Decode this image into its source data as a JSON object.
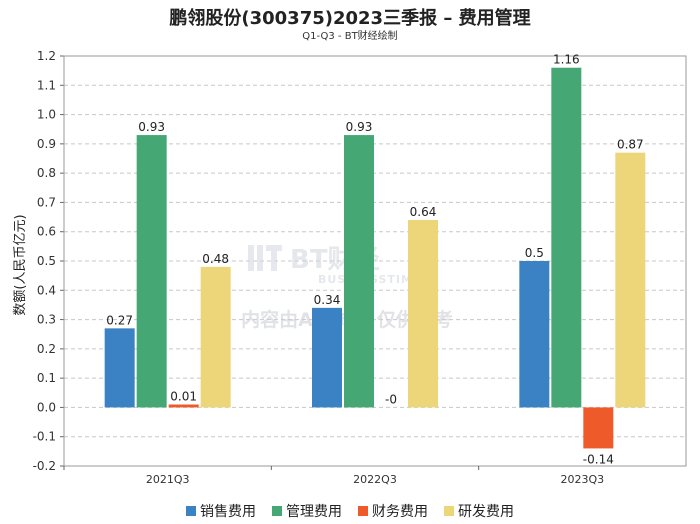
{
  "chart_data": {
    "type": "bar",
    "title": "鹏翎股份(300375)2023三季报 – 费用管理",
    "subtitle": "Q1-Q3 - BT财经绘制",
    "ylabel": "数额(人民币亿元)",
    "xlabel": "",
    "categories": [
      "2021Q3",
      "2022Q3",
      "2023Q3"
    ],
    "ylim": [
      -0.2,
      1.2
    ],
    "yticks": [
      "-0.2",
      "-0.1",
      "0.0",
      "0.1",
      "0.2",
      "0.3",
      "0.4",
      "0.5",
      "0.6",
      "0.7",
      "0.8",
      "0.9",
      "1.0",
      "1.1",
      "1.2"
    ],
    "grid": true,
    "legend_position": "bottom",
    "series": [
      {
        "name": "销售费用",
        "color": "#3a82c4",
        "values": [
          0.27,
          0.34,
          0.5
        ],
        "labels": [
          "0.27",
          "0.34",
          "0.5"
        ]
      },
      {
        "name": "管理费用",
        "color": "#45a874",
        "values": [
          0.93,
          0.93,
          1.16
        ],
        "labels": [
          "0.93",
          "0.93",
          "1.16"
        ]
      },
      {
        "name": "财务费用",
        "color": "#ef5a2a",
        "values": [
          0.01,
          0,
          -0.14
        ],
        "labels": [
          "0.01",
          "-0",
          "-0.14"
        ]
      },
      {
        "name": "研发费用",
        "color": "#edd67a",
        "values": [
          0.48,
          0.64,
          0.87
        ],
        "labels": [
          "0.48",
          "0.64",
          "0.87"
        ]
      }
    ],
    "watermark": {
      "brand": "BT财经",
      "brand_en": "BUSINESSTIMES",
      "notice": "内容由AI生成，仅供参考"
    }
  }
}
